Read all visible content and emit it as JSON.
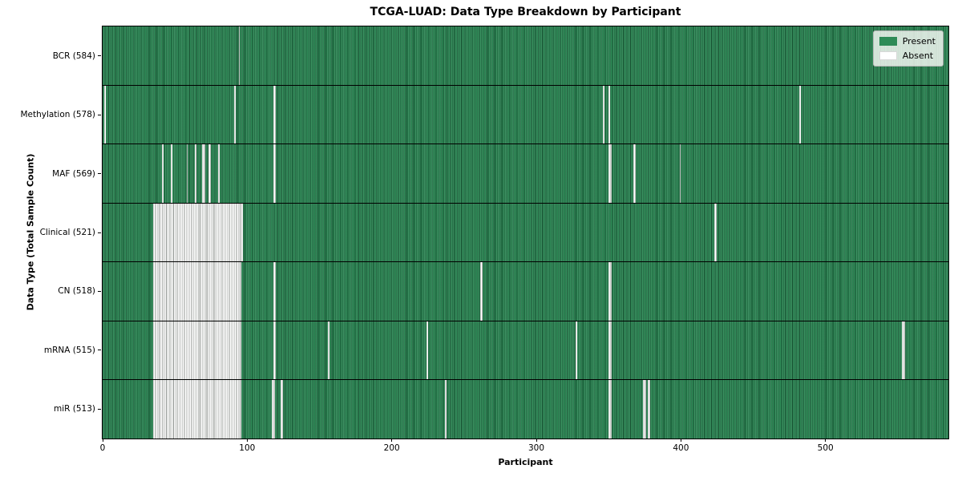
{
  "figure": {
    "title": "TCGA-LUAD: Data Type Breakdown by Participant",
    "xlabel": "Participant",
    "ylabel": "Data Type (Total Sample Count)"
  },
  "legend": {
    "items": [
      {
        "label": "Present",
        "color": "#2e8b57"
      },
      {
        "label": "Absent",
        "color": "#ffffff"
      }
    ]
  },
  "chart_data": {
    "type": "heatmap",
    "title": "TCGA-LUAD: Data Type Breakdown by Participant",
    "xlabel": "Participant",
    "ylabel": "Data Type (Total Sample Count)",
    "x_ticks": [
      0,
      100,
      200,
      300,
      400,
      500
    ],
    "x_range": [
      0,
      585
    ],
    "n_participants": 585,
    "grid": false,
    "legend_position": "upper right",
    "colors": {
      "present": "#2e8b57",
      "present_edge": "#14402a",
      "absent": "#ffffff",
      "absent_edge": "#9aa09b",
      "row_separator": "#000000"
    },
    "rows": [
      {
        "data_type": "BCR",
        "label": "BCR (584)",
        "present_count": 584,
        "absent_runs": [
          [
            94,
            1
          ]
        ]
      },
      {
        "data_type": "Methylation",
        "label": "Methylation (578)",
        "present_count": 578,
        "absent_runs": [
          [
            1,
            1
          ],
          [
            91,
            1
          ],
          [
            118,
            2
          ],
          [
            346,
            1
          ],
          [
            350,
            1
          ],
          [
            482,
            1
          ]
        ]
      },
      {
        "data_type": "MAF",
        "label": "MAF (569)",
        "present_count": 569,
        "absent_runs": [
          [
            41,
            1
          ],
          [
            47,
            1
          ],
          [
            58,
            1
          ],
          [
            64,
            1
          ],
          [
            69,
            2
          ],
          [
            73,
            2
          ],
          [
            80,
            1
          ],
          [
            118,
            2
          ],
          [
            350,
            2
          ],
          [
            367,
            2
          ],
          [
            399,
            1
          ]
        ]
      },
      {
        "data_type": "Clinical",
        "label": "Clinical (521)",
        "present_count": 521,
        "absent_runs": [
          [
            35,
            62
          ],
          [
            423,
            2
          ]
        ]
      },
      {
        "data_type": "CN",
        "label": "CN (518)",
        "present_count": 518,
        "absent_runs": [
          [
            35,
            61
          ],
          [
            118,
            2
          ],
          [
            261,
            2
          ],
          [
            350,
            2
          ]
        ]
      },
      {
        "data_type": "mRNA",
        "label": "mRNA (515)",
        "present_count": 515,
        "absent_runs": [
          [
            35,
            61
          ],
          [
            118,
            2
          ],
          [
            156,
            1
          ],
          [
            224,
            1
          ],
          [
            327,
            1
          ],
          [
            350,
            2
          ],
          [
            553,
            2
          ]
        ]
      },
      {
        "data_type": "miR",
        "label": "miR (513)",
        "present_count": 513,
        "absent_runs": [
          [
            35,
            61
          ],
          [
            117,
            2
          ],
          [
            123,
            2
          ],
          [
            237,
            1
          ],
          [
            350,
            2
          ],
          [
            374,
            2
          ],
          [
            377,
            2
          ]
        ]
      }
    ]
  }
}
